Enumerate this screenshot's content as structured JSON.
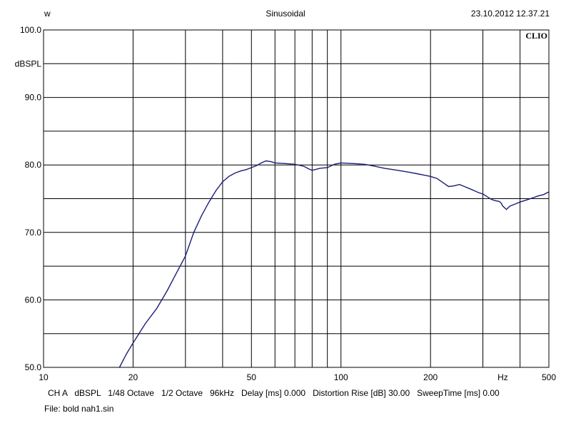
{
  "header": {
    "left": "w",
    "center": "Sinusoidal",
    "right": "23.10.2012 12.37.21"
  },
  "brand": "CLIO",
  "footer": {
    "settings": "CH A   dBSPL   1/48 Octave   1/2 Octave   96kHz   Delay [ms] 0.000   Distortion Rise [dB] 30.00   SweepTime [ms] 0.00",
    "file": "File: bold nah1.sin"
  },
  "colors": {
    "trace": "#1c1c78",
    "grid": "#000000",
    "background": "#ffffff"
  },
  "chart_data": {
    "type": "line",
    "title": "Sinusoidal",
    "xlabel": "Hz",
    "ylabel": "dBSPL",
    "xscale": "log",
    "xlim": [
      10,
      500
    ],
    "ylim": [
      50,
      100
    ],
    "grid": true,
    "x_gridlines": [
      20,
      30,
      40,
      50,
      60,
      70,
      80,
      90,
      100,
      200,
      300,
      400
    ],
    "y_gridlines": [
      55,
      60,
      65,
      70,
      75,
      80,
      85,
      90,
      95
    ],
    "x_tick_labels": [
      {
        "value": 10,
        "label": "10"
      },
      {
        "value": 20,
        "label": "20"
      },
      {
        "value": 50,
        "label": "50"
      },
      {
        "value": 100,
        "label": "100"
      },
      {
        "value": 200,
        "label": "200"
      },
      {
        "value": 350,
        "label": "Hz"
      },
      {
        "value": 500,
        "label": "500"
      }
    ],
    "y_tick_labels": [
      {
        "value": 100,
        "label": "100.0"
      },
      {
        "value": 90,
        "label": "90.0"
      },
      {
        "value": 80,
        "label": "80.0"
      },
      {
        "value": 70,
        "label": "70.0"
      },
      {
        "value": 60,
        "label": "60.0"
      },
      {
        "value": 50,
        "label": "50.0"
      }
    ],
    "series": [
      {
        "x": [
          18,
          19,
          20,
          22,
          24,
          26,
          28,
          30,
          32,
          34,
          36,
          38,
          40,
          42,
          44,
          46,
          48,
          50,
          52,
          54,
          56,
          58,
          60,
          65,
          70,
          75,
          78,
          80,
          85,
          90,
          95,
          100,
          110,
          120,
          130,
          140,
          150,
          160,
          170,
          180,
          190,
          200,
          210,
          220,
          230,
          240,
          250,
          260,
          270,
          280,
          290,
          300,
          310,
          320,
          330,
          340,
          345,
          350,
          360,
          370,
          380,
          390,
          400,
          420,
          440,
          460,
          480,
          500
        ],
        "y": [
          50.0,
          52.0,
          53.6,
          56.5,
          58.7,
          61.3,
          64.0,
          66.5,
          70.0,
          72.5,
          74.5,
          76.2,
          77.5,
          78.3,
          78.8,
          79.1,
          79.3,
          79.6,
          79.9,
          80.3,
          80.6,
          80.5,
          80.3,
          80.2,
          80.1,
          79.8,
          79.4,
          79.2,
          79.5,
          79.6,
          80.1,
          80.3,
          80.2,
          80.1,
          79.8,
          79.5,
          79.3,
          79.1,
          78.9,
          78.7,
          78.5,
          78.3,
          78.0,
          77.4,
          76.8,
          76.9,
          77.1,
          76.8,
          76.5,
          76.2,
          75.9,
          75.7,
          75.3,
          74.9,
          74.7,
          74.6,
          74.4,
          73.9,
          73.4,
          73.9,
          74.1,
          74.3,
          74.5,
          74.8,
          75.1,
          75.4,
          75.6,
          76.0
        ]
      }
    ]
  }
}
